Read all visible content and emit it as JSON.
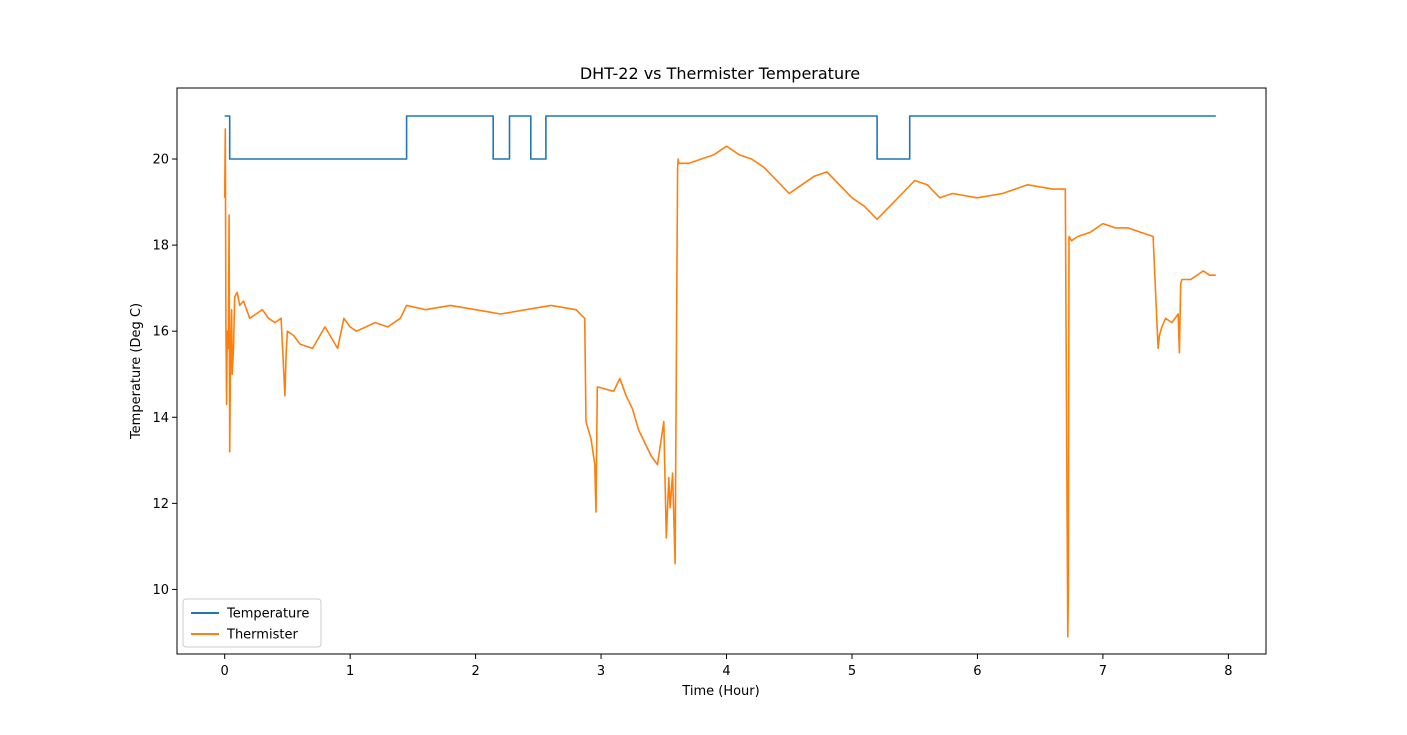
{
  "chart_data": {
    "type": "line",
    "title": "DHT-22 vs Thermister Temperature",
    "xlabel": "Time (Hour)",
    "ylabel": "Temperature (Deg C)",
    "xlim": [
      -0.38,
      8.3
    ],
    "ylim": [
      8.5,
      21.65
    ],
    "xticks": [
      0,
      1,
      2,
      3,
      4,
      5,
      6,
      7,
      8
    ],
    "yticks": [
      10,
      12,
      14,
      16,
      18,
      20
    ],
    "grid": false,
    "legend_position": "lower-left",
    "series": [
      {
        "name": "Temperature",
        "color": "#1f77b4",
        "step": true,
        "x": [
          0.0,
          0.04,
          0.04,
          1.45,
          1.45,
          2.14,
          2.14,
          2.27,
          2.27,
          2.44,
          2.44,
          2.56,
          2.56,
          5.2,
          5.2,
          5.46,
          5.46,
          7.9
        ],
        "y": [
          21,
          21,
          20,
          20,
          21,
          21,
          20,
          20,
          21,
          21,
          20,
          20,
          21,
          21,
          20,
          20,
          21,
          21
        ]
      },
      {
        "name": "Thermister",
        "color": "#ff7f0e",
        "x": [
          0.0,
          0.005,
          0.01,
          0.015,
          0.02,
          0.03,
          0.035,
          0.04,
          0.045,
          0.05,
          0.055,
          0.06,
          0.07,
          0.08,
          0.1,
          0.12,
          0.15,
          0.2,
          0.25,
          0.3,
          0.35,
          0.4,
          0.45,
          0.48,
          0.49,
          0.5,
          0.55,
          0.6,
          0.7,
          0.8,
          0.9,
          0.95,
          1.0,
          1.05,
          1.2,
          1.3,
          1.4,
          1.45,
          1.6,
          1.8,
          2.0,
          2.2,
          2.4,
          2.6,
          2.8,
          2.87,
          2.88,
          2.92,
          2.95,
          2.96,
          2.97,
          2.98,
          3.1,
          3.15,
          3.2,
          3.25,
          3.3,
          3.35,
          3.4,
          3.45,
          3.5,
          3.52,
          3.54,
          3.55,
          3.57,
          3.59,
          3.61,
          3.615,
          3.62,
          3.7,
          3.8,
          3.9,
          4.0,
          4.1,
          4.2,
          4.3,
          4.4,
          4.5,
          4.6,
          4.7,
          4.8,
          4.9,
          5.0,
          5.1,
          5.2,
          5.3,
          5.4,
          5.5,
          5.6,
          5.7,
          5.8,
          6.0,
          6.2,
          6.4,
          6.6,
          6.7,
          6.72,
          6.725,
          6.73,
          6.75,
          6.8,
          6.9,
          7.0,
          7.1,
          7.2,
          7.3,
          7.4,
          7.44,
          7.45,
          7.47,
          7.5,
          7.55,
          7.6,
          7.61,
          7.62,
          7.63,
          7.65,
          7.7,
          7.8,
          7.85,
          7.9
        ],
        "y": [
          19.1,
          20.7,
          16.2,
          14.3,
          16.0,
          15.6,
          18.7,
          13.2,
          14.8,
          15.8,
          16.5,
          15.0,
          15.6,
          16.8,
          16.9,
          16.6,
          16.7,
          16.3,
          16.4,
          16.5,
          16.3,
          16.2,
          16.3,
          14.5,
          15.5,
          16.0,
          15.9,
          15.7,
          15.6,
          16.1,
          15.6,
          16.3,
          16.1,
          16.0,
          16.2,
          16.1,
          16.3,
          16.6,
          16.5,
          16.6,
          16.5,
          16.4,
          16.5,
          16.6,
          16.5,
          16.3,
          13.9,
          13.5,
          12.9,
          11.8,
          14.7,
          14.7,
          14.6,
          14.9,
          14.5,
          14.2,
          13.7,
          13.4,
          13.1,
          12.9,
          13.9,
          11.2,
          12.6,
          11.9,
          12.7,
          10.6,
          19.8,
          20.0,
          19.9,
          19.9,
          20.0,
          20.1,
          20.3,
          20.1,
          20.0,
          19.8,
          19.5,
          19.2,
          19.4,
          19.6,
          19.7,
          19.4,
          19.1,
          18.9,
          18.6,
          18.9,
          19.2,
          19.5,
          19.4,
          19.1,
          19.2,
          19.1,
          19.2,
          19.4,
          19.3,
          19.3,
          8.9,
          10.0,
          18.2,
          18.1,
          18.2,
          18.3,
          18.5,
          18.4,
          18.4,
          18.3,
          18.2,
          15.6,
          15.9,
          16.1,
          16.3,
          16.2,
          16.4,
          15.5,
          17.1,
          17.2,
          17.2,
          17.2,
          17.4,
          17.3,
          17.3
        ]
      }
    ]
  }
}
